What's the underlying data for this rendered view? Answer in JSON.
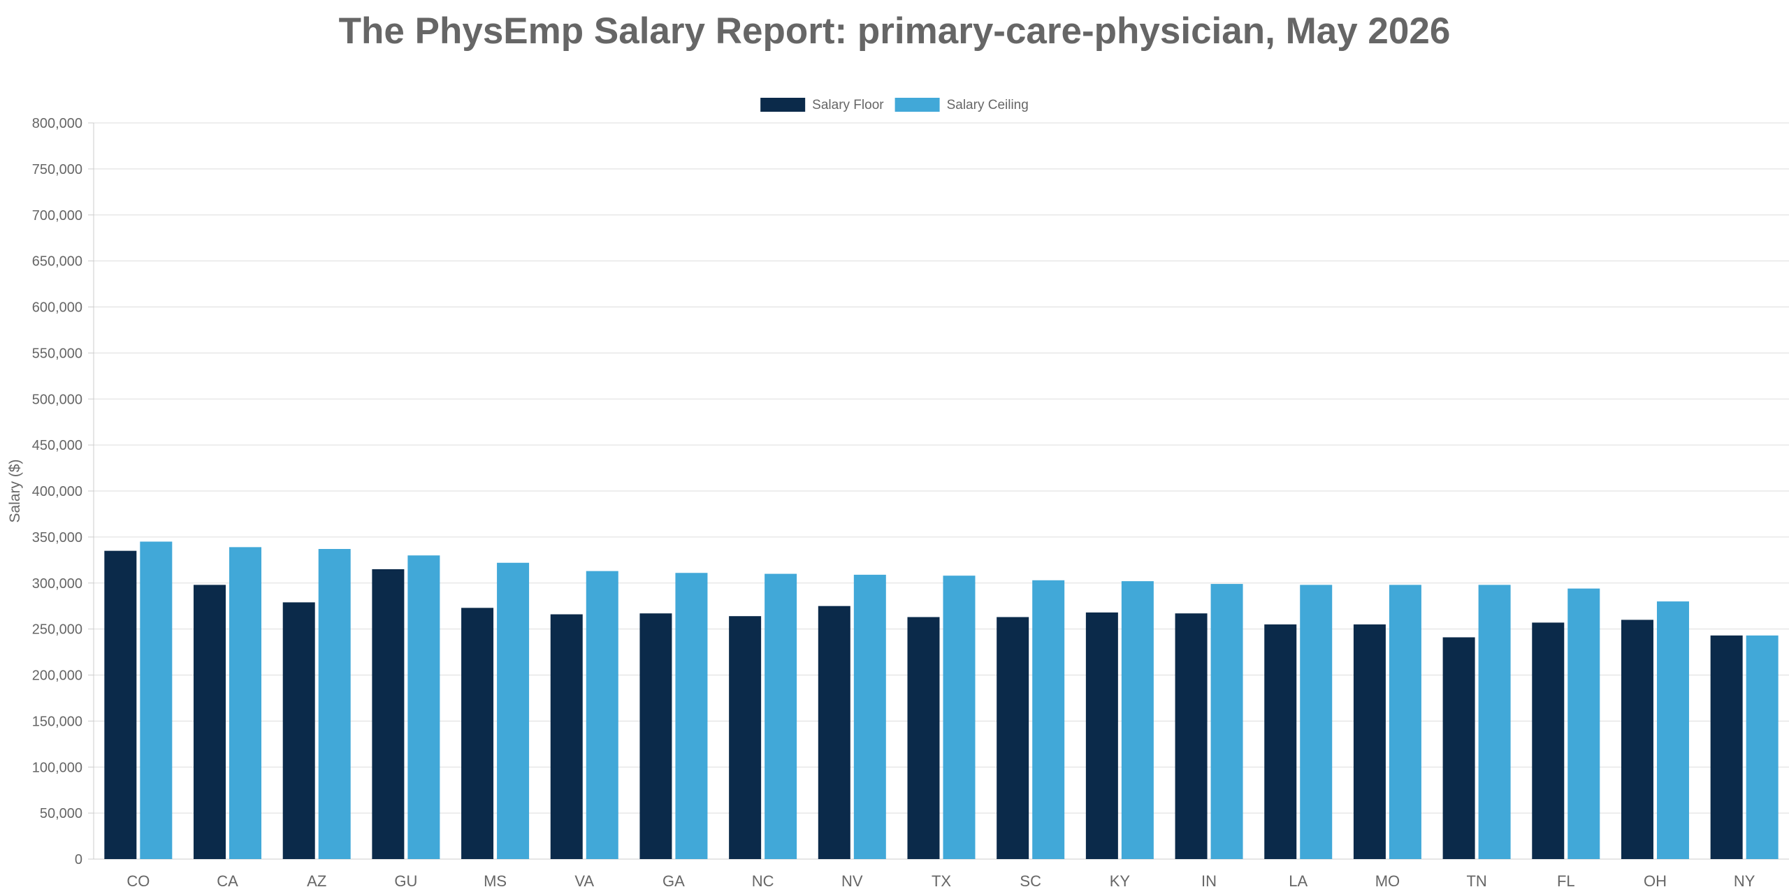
{
  "chart_data": {
    "type": "bar",
    "title": "The PhysEmp Salary Report: primary-care-physician, May 2026",
    "xlabel": "",
    "ylabel": "Salary ($)",
    "ylim": [
      0,
      800000
    ],
    "ytick_step": 50000,
    "grid": true,
    "legend_position": "top-center",
    "categories": [
      "CO",
      "CA",
      "AZ",
      "GU",
      "MS",
      "VA",
      "GA",
      "NC",
      "NV",
      "TX",
      "SC",
      "KY",
      "IN",
      "LA",
      "MO",
      "TN",
      "FL",
      "OH",
      "NY"
    ],
    "series": [
      {
        "name": "Salary Floor",
        "color": "#0b2a4a",
        "values": [
          335000,
          298000,
          279000,
          315000,
          273000,
          266000,
          267000,
          264000,
          275000,
          263000,
          263000,
          268000,
          267000,
          255000,
          255000,
          241000,
          257000,
          260000,
          243000
        ]
      },
      {
        "name": "Salary Ceiling",
        "color": "#41a8d8",
        "values": [
          345000,
          339000,
          337000,
          330000,
          322000,
          313000,
          311000,
          310000,
          309000,
          308000,
          303000,
          302000,
          299000,
          298000,
          298000,
          298000,
          294000,
          280000,
          243000
        ]
      }
    ]
  }
}
